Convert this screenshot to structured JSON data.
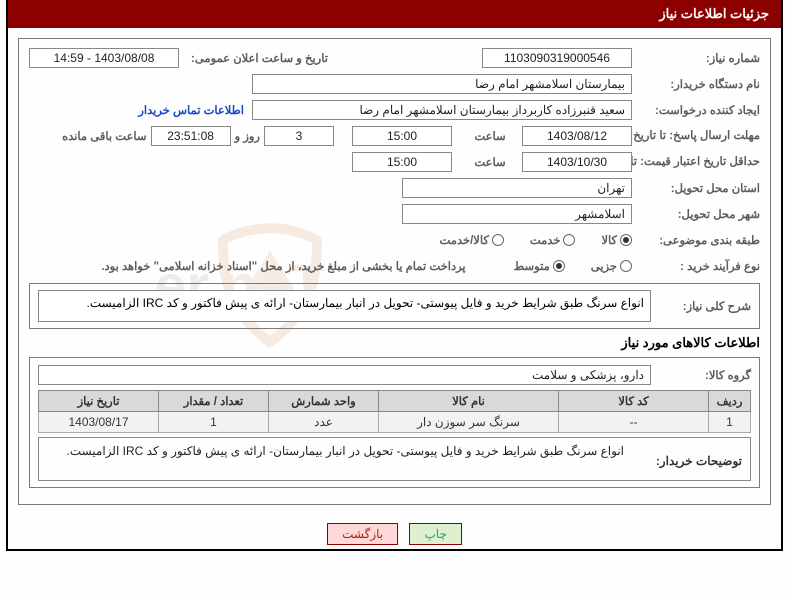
{
  "header": {
    "title": "جزئیات اطلاعات نیاز"
  },
  "fields": {
    "need_no_label": "شماره نیاز:",
    "need_no": "1103090319000546",
    "announce_label": "تاریخ و ساعت اعلان عمومی:",
    "announce_value": "1403/08/08 - 14:59",
    "buyer_label": "نام دستگاه خریدار:",
    "buyer_value": "بیمارستان اسلامشهر   امام رضا",
    "requester_label": "ایجاد کننده درخواست:",
    "requester_value": "سعید قنبرزاده کاربرداز بیمارستان اسلامشهر   امام رضا",
    "contact_link": "اطلاعات تماس خریدار",
    "deadline_label": "مهلت ارسال پاسخ: تا تاریخ:",
    "deadline_date": "1403/08/12",
    "time_label": "ساعت",
    "deadline_time": "15:00",
    "days_value": "3",
    "days_and": "روز و",
    "countdown": "23:51:08",
    "remaining": "ساعت باقی مانده",
    "validity_label": "حداقل تاریخ اعتبار قیمت: تا تاریخ:",
    "validity_date": "1403/10/30",
    "validity_time": "15:00",
    "province_label": "استان محل تحویل:",
    "province_value": "تهران",
    "city_label": "شهر محل تحویل:",
    "city_value": "اسلامشهر",
    "category_label": "طبقه بندی موضوعی:",
    "process_label": "نوع فرآیند خرید :",
    "payment_note": "پرداخت تمام یا بخشی از مبلغ خرید، از محل \"اسناد خزانه اسلامی\" خواهد بود.",
    "radios_cat": [
      {
        "label": "کالا",
        "checked": true
      },
      {
        "label": "خدمت",
        "checked": false
      },
      {
        "label": "کالا/خدمت",
        "checked": false
      }
    ],
    "radios_proc": [
      {
        "label": "جزیی",
        "checked": false
      },
      {
        "label": "متوسط",
        "checked": true
      }
    ]
  },
  "description": {
    "label": "شرح کلی نیاز:",
    "text": "انواع سرنگ طبق شرایط خرید و فایل پیوستی- تحویل در انبار بیمارستان- ارائه ی  پیش فاکتور و کد IRC الزامیست."
  },
  "goods_section": {
    "title": "اطلاعات کالاهای مورد نیاز",
    "group_label": "گروه کالا:",
    "group_value": "دارو، پزشکی و سلامت"
  },
  "table": {
    "headers": [
      "ردیف",
      "کد کالا",
      "نام کالا",
      "واحد شمارش",
      "تعداد / مقدار",
      "تاریخ نیاز"
    ],
    "rows": [
      [
        "1",
        "--",
        "سرنگ سر سوزن دار",
        "عدد",
        "1",
        "1403/08/17"
      ]
    ]
  },
  "buyer_note": {
    "label": "توضیحات خریدار:",
    "text": "انواع سرنگ طبق شرایط خرید و فایل پیوستی- تحویل در انبار بیمارستان- ارائه ی  پیش فاکتور و کد IRC الزامیست."
  },
  "buttons": {
    "print": "چاپ",
    "back": "بازگشت"
  },
  "watermark": {
    "text_main": "AriaTender",
    "text_tld": ".neT",
    "text_color": "#7a7a7a",
    "shield_stroke": "#b96a20",
    "shield_fill": "#ffffff"
  },
  "colors": {
    "header_bg": "#8c0000",
    "border": "#7a7a7a",
    "label": "#5d5d5d",
    "link": "#1646c9",
    "th_bg": "#d9d9d9",
    "td_bg": "#f2f2f2"
  }
}
